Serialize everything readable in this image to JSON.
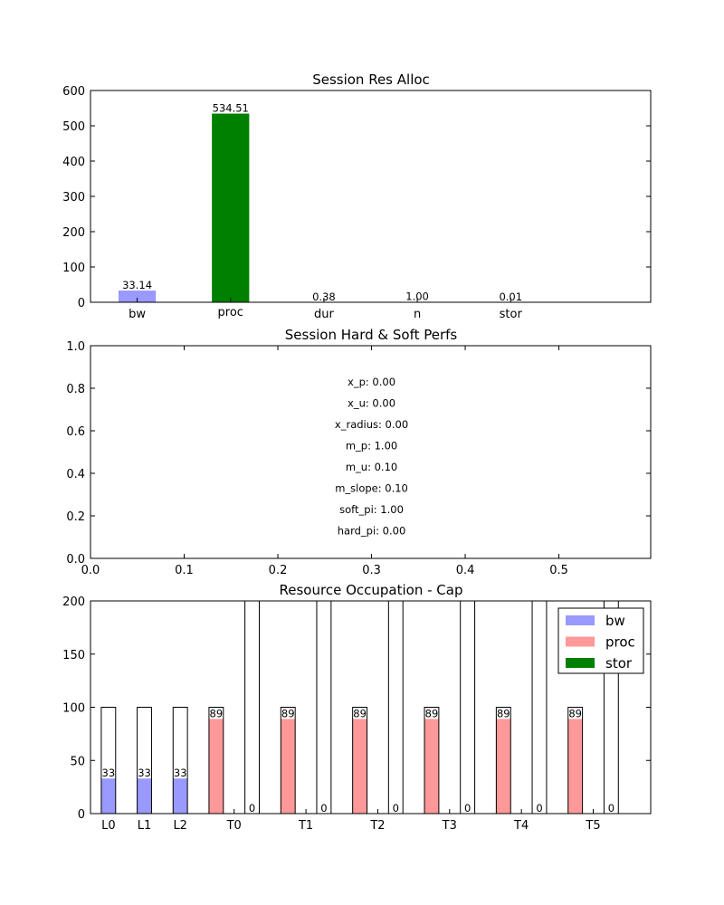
{
  "chart_data": [
    {
      "type": "bar",
      "title": "Session Res Alloc",
      "categories": [
        "bw",
        "proc",
        "dur",
        "n",
        "stor"
      ],
      "values": [
        33.14,
        534.51,
        0.38,
        1.0,
        0.01
      ],
      "value_labels": [
        "33.14",
        "534.51",
        "0.38",
        "1.00",
        "0.01"
      ],
      "colors": [
        "#9999ff",
        "#008000",
        "#9999ff",
        "#9999ff",
        "#9999ff"
      ],
      "ylim": [
        0,
        600
      ],
      "yticks": [
        "0",
        "100",
        "200",
        "300",
        "400",
        "500",
        "600"
      ],
      "xlabel": "",
      "ylabel": "",
      "grid": false
    },
    {
      "type": "table",
      "title": "Session Hard & Soft Perfs",
      "xlim": [
        0,
        0.6
      ],
      "ylim": [
        0,
        1.0
      ],
      "xticks": [
        "0.0",
        "0.1",
        "0.2",
        "0.3",
        "0.4",
        "0.5"
      ],
      "yticks": [
        "0.0",
        "0.2",
        "0.4",
        "0.6",
        "0.8",
        "1.0"
      ],
      "entries": [
        {
          "text": "x_p: 0.00",
          "y": 0.83
        },
        {
          "text": "x_u: 0.00",
          "y": 0.73
        },
        {
          "text": "x_radius: 0.00",
          "y": 0.63
        },
        {
          "text": "m_p: 1.00",
          "y": 0.53
        },
        {
          "text": "m_u: 0.10",
          "y": 0.43
        },
        {
          "text": "m_slope: 0.10",
          "y": 0.33
        },
        {
          "text": "soft_pi: 1.00",
          "y": 0.23
        },
        {
          "text": "hard_pi: 0.00",
          "y": 0.13
        }
      ],
      "entries_x": 0.3
    },
    {
      "type": "bar",
      "title": "Resource Occupation - Cap",
      "ylim": [
        0,
        200
      ],
      "xlim": [
        0,
        15.6
      ],
      "yticks": [
        "0",
        "50",
        "100",
        "150",
        "200"
      ],
      "categories": [
        "L0",
        "L1",
        "L2",
        "T0",
        "T1",
        "T2",
        "T3",
        "T4",
        "T5"
      ],
      "category_x": [
        0.5,
        1.5,
        2.5,
        4.0,
        6.0,
        8.0,
        10.0,
        12.0,
        14.0
      ],
      "bar_width": 0.4,
      "capacity_bars": [
        {
          "x": 0.3,
          "cap": 100
        },
        {
          "x": 1.3,
          "cap": 100
        },
        {
          "x": 2.3,
          "cap": 100
        },
        {
          "x": 3.3,
          "cap": 100
        },
        {
          "x": 4.3,
          "cap": 200
        },
        {
          "x": 5.3,
          "cap": 100
        },
        {
          "x": 6.3,
          "cap": 200
        },
        {
          "x": 7.3,
          "cap": 100
        },
        {
          "x": 8.3,
          "cap": 200
        },
        {
          "x": 9.3,
          "cap": 100
        },
        {
          "x": 10.3,
          "cap": 200
        },
        {
          "x": 11.3,
          "cap": 100
        },
        {
          "x": 12.3,
          "cap": 200
        },
        {
          "x": 13.3,
          "cap": 100
        },
        {
          "x": 14.3,
          "cap": 200
        }
      ],
      "series": [
        {
          "name": "bw",
          "color": "#9999ff",
          "points": [
            {
              "x": 0.3,
              "value": 33,
              "label": "33"
            },
            {
              "x": 1.3,
              "value": 33,
              "label": "33"
            },
            {
              "x": 2.3,
              "value": 33,
              "label": "33"
            }
          ]
        },
        {
          "name": "proc",
          "color": "#ff9999",
          "points": [
            {
              "x": 3.3,
              "value": 89,
              "label": "89"
            },
            {
              "x": 5.3,
              "value": 89,
              "label": "89"
            },
            {
              "x": 7.3,
              "value": 89,
              "label": "89"
            },
            {
              "x": 9.3,
              "value": 89,
              "label": "89"
            },
            {
              "x": 11.3,
              "value": 89,
              "label": "89"
            },
            {
              "x": 13.3,
              "value": 89,
              "label": "89"
            }
          ]
        },
        {
          "name": "stor",
          "color": "#008000",
          "points": [
            {
              "x": 4.3,
              "value": 0,
              "label": "0"
            },
            {
              "x": 6.3,
              "value": 0,
              "label": "0"
            },
            {
              "x": 8.3,
              "value": 0,
              "label": "0"
            },
            {
              "x": 10.3,
              "value": 0,
              "label": "0"
            },
            {
              "x": 12.3,
              "value": 0,
              "label": "0"
            },
            {
              "x": 14.3,
              "value": 0,
              "label": "0"
            }
          ]
        }
      ],
      "legend": [
        "bw",
        "proc",
        "stor"
      ],
      "legend_position": "top-right",
      "grid": false
    }
  ]
}
